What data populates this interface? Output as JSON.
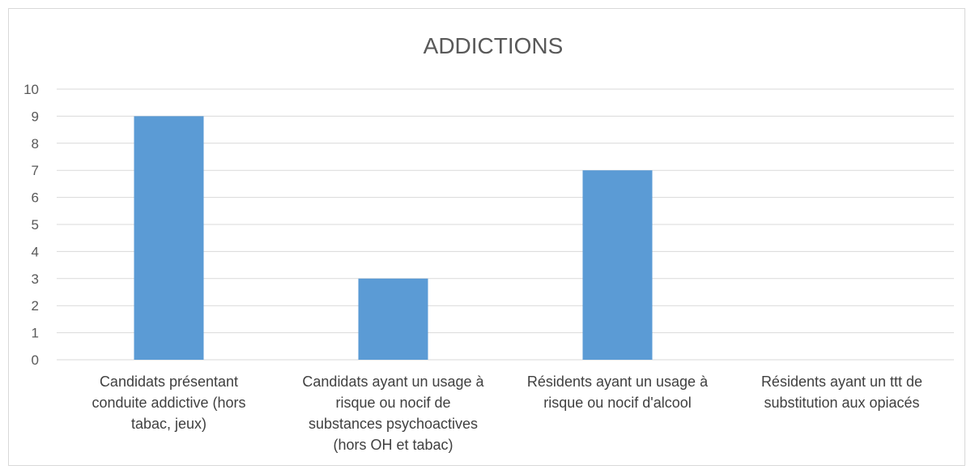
{
  "chart_data": {
    "type": "bar",
    "title": "ADDICTIONS",
    "xlabel": "",
    "ylabel": "",
    "ylim": [
      0,
      10
    ],
    "yticks": [
      0,
      1,
      2,
      3,
      4,
      5,
      6,
      7,
      8,
      9,
      10
    ],
    "grid": true,
    "legend": "none",
    "bar_color": "#5b9bd5",
    "categories": [
      [
        "Candidats présentant",
        "conduite addictive (hors",
        "tabac, jeux)"
      ],
      [
        "Candidats ayant un usage à",
        "risque ou nocif de",
        "substances psychoactives",
        "(hors OH et tabac)"
      ],
      [
        "Résidents ayant un usage à",
        "risque ou nocif d'alcool"
      ],
      [
        "Résidents ayant un ttt de",
        "substitution aux opiacés"
      ]
    ],
    "values": [
      9,
      3,
      7,
      0
    ]
  }
}
